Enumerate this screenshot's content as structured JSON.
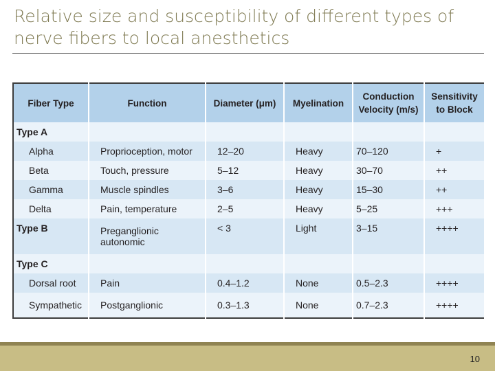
{
  "slide": {
    "title": "Relative size and susceptibility of different types of nerve fibers to local anesthetics",
    "page_number": "10"
  },
  "table": {
    "headers": [
      "Fiber Type",
      "Function",
      "Diameter (μm)",
      "Myelination",
      "Conduction Velocity (m/s)",
      "Sensitivity to Block"
    ],
    "rows": [
      {
        "fiber": "Type A",
        "function": "",
        "diameter": "",
        "myelination": "",
        "velocity": "",
        "sensitivity": ""
      },
      {
        "fiber": "Alpha",
        "function": "Proprioception, motor",
        "diameter": "12–20",
        "myelination": "Heavy",
        "velocity": "70–120",
        "sensitivity": "+"
      },
      {
        "fiber": "Beta",
        "function": "Touch, pressure",
        "diameter": "5–12",
        "myelination": "Heavy",
        "velocity": "30–70",
        "sensitivity": "++"
      },
      {
        "fiber": "Gamma",
        "function": "Muscle spindles",
        "diameter": "3–6",
        "myelination": "Heavy",
        "velocity": "15–30",
        "sensitivity": "++"
      },
      {
        "fiber": "Delta",
        "function": "Pain, temperature",
        "diameter": "2–5",
        "myelination": "Heavy",
        "velocity": "5–25",
        "sensitivity": "+++"
      },
      {
        "fiber": "Type B",
        "function": "Preganglionic autonomic",
        "diameter": "< 3",
        "myelination": "Light",
        "velocity": "3–15",
        "sensitivity": "++++"
      },
      {
        "fiber": "Type C",
        "function": "",
        "diameter": "",
        "myelination": "",
        "velocity": "",
        "sensitivity": ""
      },
      {
        "fiber": "Dorsal root",
        "function": "Pain",
        "diameter": "0.4–1.2",
        "myelination": "None",
        "velocity": "0.5–2.3",
        "sensitivity": "++++"
      },
      {
        "fiber": "Sympathetic",
        "function": "Postganglionic",
        "diameter": "0.3–1.3",
        "myelination": "None",
        "velocity": "0.7–2.3",
        "sensitivity": "++++"
      }
    ]
  }
}
